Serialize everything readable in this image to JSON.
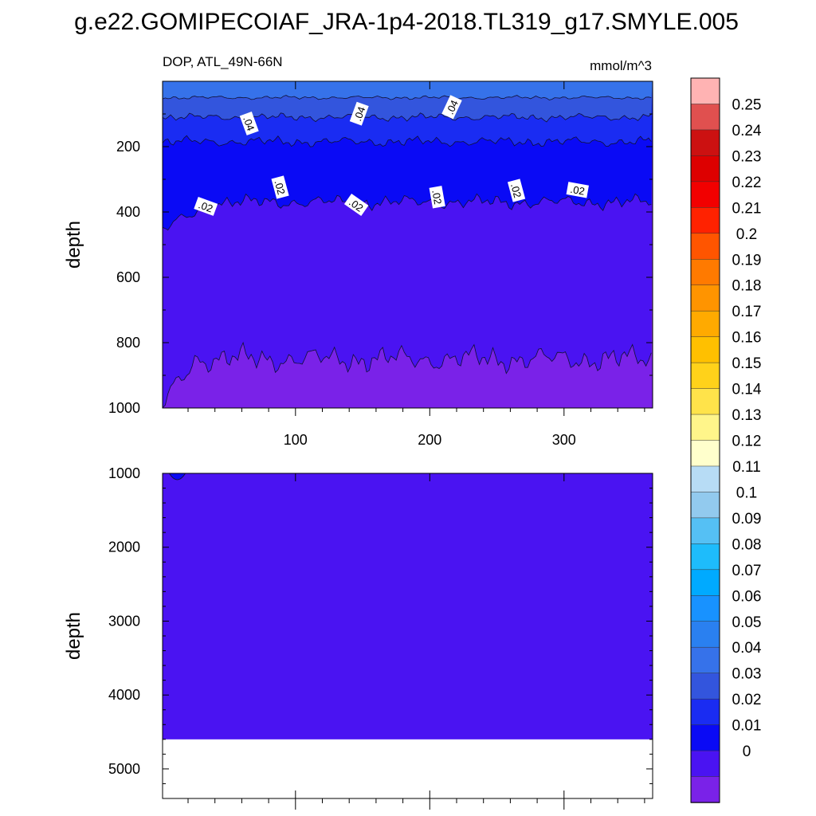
{
  "chart_data": {
    "type": "heatmap",
    "title": "g.e22.GOMIPECOIAF_JRA-1p4-2018.TL319_g17.SMYLE.005",
    "subtitle_left": "DOP, ATL_49N-66N",
    "subtitle_right": "mmol/m^3",
    "variable": "DOP",
    "region": "ATL_49N-66N",
    "units": "mmol/m^3",
    "xlabel": "",
    "ylabel": "depth",
    "xlim": [
      1,
      366
    ],
    "xticks": [
      100,
      200,
      300
    ],
    "panels": [
      {
        "name": "upper",
        "ylim": [
          1000,
          0
        ],
        "yticks": [
          200,
          400,
          600,
          800,
          1000
        ],
        "bands": [
          {
            "level_lower": 0.04,
            "depth_bottom_mean": 50
          },
          {
            "level_lower": 0.03,
            "depth_bottom_mean": 110
          },
          {
            "level_lower": 0.02,
            "depth_bottom_mean": 185
          },
          {
            "level_lower": 0.01,
            "depth_bottom_mean": 370
          },
          {
            "level_lower": 0.0,
            "depth_bottom_mean": 850
          },
          {
            "level_lower": -0.01,
            "depth_bottom_mean": 1000
          }
        ],
        "contour_labels": [
          {
            "text": ".04",
            "day": 65,
            "depth": 130
          },
          {
            "text": ".04",
            "day": 148,
            "depth": 100
          },
          {
            "text": ".04",
            "day": 217,
            "depth": 80
          },
          {
            "text": ".02",
            "day": 33,
            "depth": 385
          },
          {
            "text": ".02",
            "day": 88,
            "depth": 325
          },
          {
            "text": ".02",
            "day": 145,
            "depth": 380
          },
          {
            "text": ".02",
            "day": 205,
            "depth": 355
          },
          {
            "text": ".02",
            "day": 264,
            "depth": 335
          },
          {
            "text": ".02",
            "day": 310,
            "depth": 335
          }
        ]
      },
      {
        "name": "lower",
        "ylim": [
          5400,
          1000
        ],
        "yticks": [
          1000,
          2000,
          3000,
          4000,
          5000
        ],
        "fill_level": 0.0,
        "ocean_bottom_depth": 4600
      }
    ],
    "colorbar": {
      "labels": [
        "0.25",
        "0.24",
        "0.23",
        "0.22",
        "0.21",
        "0.2",
        "0.19",
        "0.18",
        "0.17",
        "0.16",
        "0.15",
        "0.14",
        "0.13",
        "0.12",
        "0.11",
        "0.1",
        "0.09",
        "0.08",
        "0.07",
        "0.06",
        "0.05",
        "0.04",
        "0.03",
        "0.02",
        "0.01",
        "0"
      ],
      "colors": [
        "#ffb3b3",
        "#e0504f",
        "#cc1111",
        "#dd0000",
        "#f20000",
        "#ff2200",
        "#ff5500",
        "#ff7a00",
        "#ff9400",
        "#ffaa00",
        "#ffc000",
        "#ffd21a",
        "#ffe34a",
        "#fff58a",
        "#ffffcc",
        "#b7dcf5",
        "#92caee",
        "#55c0f4",
        "#1ebcfb",
        "#00aaff",
        "#1892ff",
        "#2a80f0",
        "#3672ea",
        "#3355dd",
        "#1a2cf2",
        "#0a0af5",
        "#4a13f2",
        "#7a22e8"
      ]
    }
  }
}
